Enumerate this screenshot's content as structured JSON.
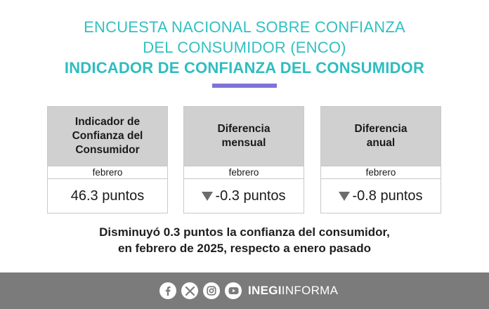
{
  "header": {
    "line1": "ENCUESTA NACIONAL SOBRE CONFIANZA",
    "line2": "DEL CONSUMIDOR (ENCO)",
    "line3": "INDICADOR DE CONFIANZA DEL CONSUMIDOR"
  },
  "colors": {
    "title": "#33c0c2",
    "accent_bar": "#7d74d8",
    "card_header": "#d0d0d0",
    "footer": "#7b7b7b",
    "down_arrow": "#6d6d6d"
  },
  "cards": [
    {
      "title": "Indicador de\nConfianza del\nConsumidor",
      "period": "febrero",
      "value": "46.3 puntos",
      "trend": "none"
    },
    {
      "title": "Diferencia\nmensual",
      "period": "febrero",
      "value": "-0.3 puntos",
      "trend": "down-arrow"
    },
    {
      "title": "Diferencia\nanual",
      "period": "febrero",
      "value": "-0.8 puntos",
      "trend": "down-arrow"
    }
  ],
  "summary": {
    "line1": "Disminuyó 0.3 puntos la confianza del consumidor,",
    "line2": "en febrero de 2025, respecto a enero pasado"
  },
  "footer": {
    "icons": [
      "facebook-icon",
      "x-icon",
      "instagram-icon",
      "youtube-icon"
    ],
    "brand_bold": "INEGI",
    "brand_light": "INFORMA"
  }
}
